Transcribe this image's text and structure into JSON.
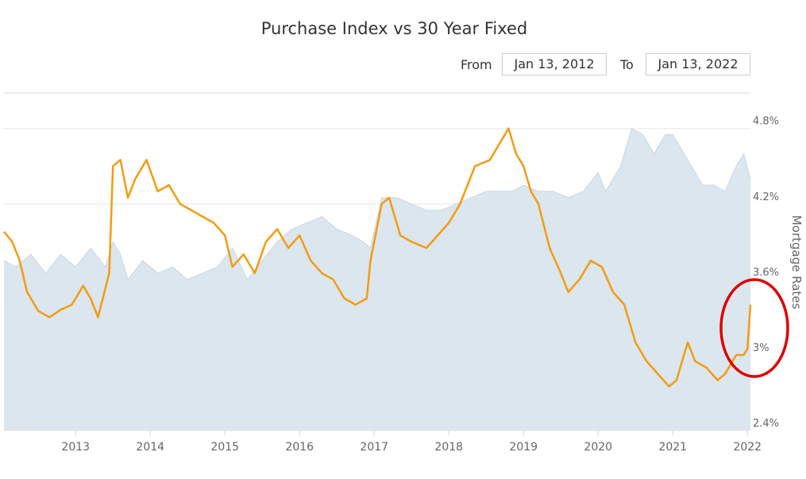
{
  "header": {
    "title": "Purchase Index vs 30 Year Fixed",
    "from_label": "From",
    "from_value": "Jan 13, 2012",
    "to_label": "To",
    "to_value": "Jan 13, 2022"
  },
  "colors": {
    "purchase_index_line": "#f39c12",
    "mortgage_area_fill": "#dbe6ee",
    "mortgage_area_edge": "#c9d8e3",
    "gridline": "#e6e6e6",
    "annotation_circle": "#dd0000"
  },
  "chart_data": {
    "type": "line",
    "title": "Purchase Index vs 30 Year Fixed",
    "xlabel": "",
    "ylabel": "Mortgage Rates",
    "x_ticks": [
      "2013",
      "2014",
      "2015",
      "2016",
      "2017",
      "2018",
      "2019",
      "2020",
      "2021",
      "2022"
    ],
    "y_ticks": [
      "2.4%",
      "3%",
      "3.6%",
      "4.2%",
      "4.8%"
    ],
    "y_tick_values": [
      2.4,
      3.0,
      3.6,
      4.2,
      4.8
    ],
    "ylim": [
      2.4,
      5.0
    ],
    "xlim": [
      2012.04,
      2022.04
    ],
    "grid": true,
    "legend": "none",
    "annotation": "red circle around the end of the series near 2022",
    "series": [
      {
        "kind": "area",
        "axis": "right",
        "color": "#dbe6ee",
        "x": [
          2012.04,
          2012.2,
          2012.4,
          2012.6,
          2012.8,
          2013.0,
          2013.2,
          2013.4,
          2013.5,
          2013.6,
          2013.7,
          2013.9,
          2014.1,
          2014.3,
          2014.5,
          2014.7,
          2014.9,
          2015.1,
          2015.3,
          2015.5,
          2015.7,
          2015.9,
          2016.1,
          2016.3,
          2016.5,
          2016.7,
          2016.85,
          2016.95,
          2017.1,
          2017.3,
          2017.5,
          2017.7,
          2017.9,
          2018.1,
          2018.3,
          2018.5,
          2018.7,
          2018.85,
          2019.0,
          2019.2,
          2019.4,
          2019.6,
          2019.8,
          2020.0,
          2020.1,
          2020.2,
          2020.3,
          2020.45,
          2020.6,
          2020.75,
          2020.9,
          2021.0,
          2021.1,
          2021.25,
          2021.4,
          2021.55,
          2021.7,
          2021.85,
          2021.95,
          2022.04
        ],
        "y": [
          3.75,
          3.7,
          3.8,
          3.65,
          3.8,
          3.7,
          3.85,
          3.7,
          3.9,
          3.8,
          3.6,
          3.75,
          3.65,
          3.7,
          3.6,
          3.65,
          3.7,
          3.85,
          3.6,
          3.75,
          3.9,
          4.0,
          4.05,
          4.1,
          4.0,
          3.95,
          3.9,
          3.85,
          4.25,
          4.25,
          4.2,
          4.15,
          4.15,
          4.2,
          4.25,
          4.3,
          4.3,
          4.3,
          4.35,
          4.3,
          4.3,
          4.25,
          4.3,
          4.45,
          4.3,
          4.4,
          4.5,
          4.8,
          4.75,
          4.6,
          4.75,
          4.75,
          4.65,
          4.5,
          4.35,
          4.35,
          4.3,
          4.5,
          4.6,
          4.4
        ]
      },
      {
        "kind": "line",
        "axis": "left",
        "name": "",
        "color": "#f39c12",
        "x": [
          2012.04,
          2012.15,
          2012.25,
          2012.35,
          2012.5,
          2012.65,
          2012.8,
          2012.95,
          2013.1,
          2013.2,
          2013.3,
          2013.45,
          2013.5,
          2013.6,
          2013.7,
          2013.8,
          2013.95,
          2014.1,
          2014.25,
          2014.4,
          2014.55,
          2014.7,
          2014.85,
          2015.0,
          2015.1,
          2015.25,
          2015.4,
          2015.55,
          2015.7,
          2015.85,
          2016.0,
          2016.15,
          2016.3,
          2016.45,
          2016.6,
          2016.75,
          2016.9,
          2016.95,
          2017.1,
          2017.2,
          2017.35,
          2017.5,
          2017.7,
          2017.85,
          2018.0,
          2018.15,
          2018.35,
          2018.55,
          2018.7,
          2018.8,
          2018.9,
          2019.0,
          2019.1,
          2019.2,
          2019.35,
          2019.5,
          2019.6,
          2019.75,
          2019.9,
          2020.05,
          2020.2,
          2020.35,
          2020.5,
          2020.65,
          2020.8,
          2020.95,
          2021.05,
          2021.2,
          2021.3,
          2021.45,
          2021.6,
          2021.7,
          2021.85,
          2021.95,
          2022.0,
          2022.04
        ],
        "y": [
          3.98,
          3.9,
          3.75,
          3.5,
          3.35,
          3.3,
          3.36,
          3.4,
          3.55,
          3.45,
          3.3,
          3.65,
          4.5,
          4.55,
          4.25,
          4.4,
          4.55,
          4.3,
          4.35,
          4.2,
          4.15,
          4.1,
          4.05,
          3.95,
          3.7,
          3.8,
          3.65,
          3.9,
          4.0,
          3.85,
          3.95,
          3.75,
          3.65,
          3.6,
          3.45,
          3.4,
          3.45,
          3.75,
          4.2,
          4.25,
          3.95,
          3.9,
          3.85,
          3.95,
          4.05,
          4.2,
          4.5,
          4.55,
          4.7,
          4.8,
          4.6,
          4.5,
          4.3,
          4.2,
          3.85,
          3.65,
          3.5,
          3.6,
          3.75,
          3.7,
          3.5,
          3.4,
          3.1,
          2.95,
          2.85,
          2.75,
          2.8,
          3.1,
          2.95,
          2.9,
          2.8,
          2.85,
          3.0,
          3.0,
          3.05,
          3.4
        ]
      }
    ]
  }
}
